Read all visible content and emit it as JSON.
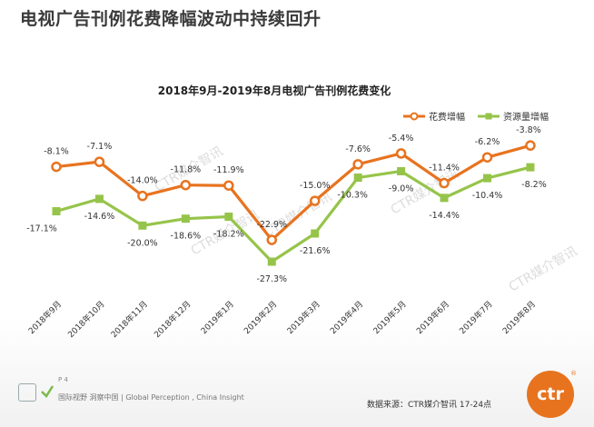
{
  "page": {
    "title": "电视广告刊例花费降幅波动中持续回升",
    "footer_page": "P 4",
    "footer_slogan": "国际视野 洞察中国 | Global Perception , China Insight",
    "source": "数据来源：CTR媒介智讯     17-24点",
    "logo_text": "ctr",
    "logo_mark": "®",
    "watermark": "CTR媒介智讯"
  },
  "chart_data": {
    "type": "line",
    "title": "2018年9月-2019年8月电视广告刊例花费变化",
    "categories": [
      "2018年9月",
      "2018年10月",
      "2018年11月",
      "2018年12月",
      "2019年1月",
      "2019年2月",
      "2019年3月",
      "2019年4月",
      "2019年5月",
      "2019年6月",
      "2019年7月",
      "2019年8月"
    ],
    "series": [
      {
        "name": "花费增幅",
        "color": "#e8731f",
        "values": [
          -8.1,
          -7.1,
          -14.0,
          -11.8,
          -11.9,
          -22.9,
          -15.0,
          -7.6,
          -5.4,
          -11.4,
          -6.2,
          -3.8
        ],
        "labels": [
          "-8.1%",
          "-7.1%",
          "-14.0%",
          "-11.8%",
          "-11.9%",
          "-22.9%",
          "-15.0%",
          "-7.6%",
          "-5.4%",
          "-11.4%",
          "-6.2%",
          "-3.8%"
        ]
      },
      {
        "name": "资源量增幅",
        "color": "#96c44a",
        "values": [
          -17.1,
          -14.6,
          -20.0,
          -18.6,
          -18.2,
          -27.3,
          -21.6,
          -10.3,
          -9.0,
          -14.4,
          -10.4,
          -8.2
        ],
        "labels": [
          "-17.1%",
          "-14.6%",
          "-20.0%",
          "-18.6%",
          "-18.2%",
          "-27.3%",
          "-21.6%",
          "-10.3%",
          "-9.0%",
          "-14.4%",
          "-10.4%",
          "-8.2%"
        ]
      }
    ],
    "ylim": [
      -30,
      0
    ],
    "grid": false,
    "legend_position": "top-right"
  }
}
